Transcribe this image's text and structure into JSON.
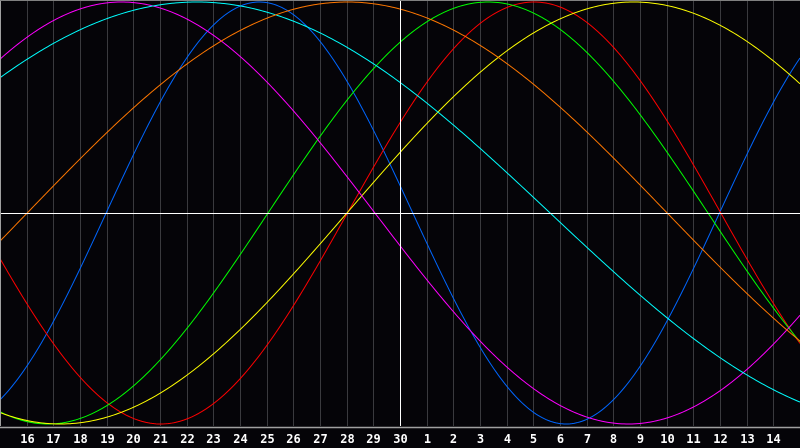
{
  "chart_data": {
    "type": "line",
    "x_tick_labels": [
      "16",
      "17",
      "18",
      "19",
      "20",
      "21",
      "22",
      "23",
      "24",
      "25",
      "26",
      "27",
      "28",
      "29",
      "30",
      "1",
      "2",
      "3",
      "4",
      "5",
      "6",
      "7",
      "8",
      "9",
      "10",
      "11",
      "12",
      "13",
      "14"
    ],
    "marked_day": "30",
    "xlim_days_from_marked": [
      -15,
      15
    ],
    "ylim": [
      -1,
      1
    ],
    "grid": true,
    "background": "#050408",
    "series": [
      {
        "color": "#0066ff",
        "period_days": 23,
        "peak_days_from_marked": -5.27
      },
      {
        "color": "#ff0000",
        "period_days": 28,
        "peak_days_from_marked": 5.03
      },
      {
        "color": "#00ff00",
        "period_days": 33,
        "peak_days_from_marked": 3.3
      },
      {
        "color": "#ffff00",
        "period_days": 43,
        "peak_days_from_marked": 8.76
      },
      {
        "color": "#ff00ff",
        "period_days": 38,
        "peak_days_from_marked": -10.44
      },
      {
        "color": "#00ffff",
        "period_days": 53,
        "peak_days_from_marked": -7.62
      },
      {
        "color": "#ff7700",
        "period_days": 48,
        "peak_days_from_marked": -1.98
      }
    ]
  }
}
